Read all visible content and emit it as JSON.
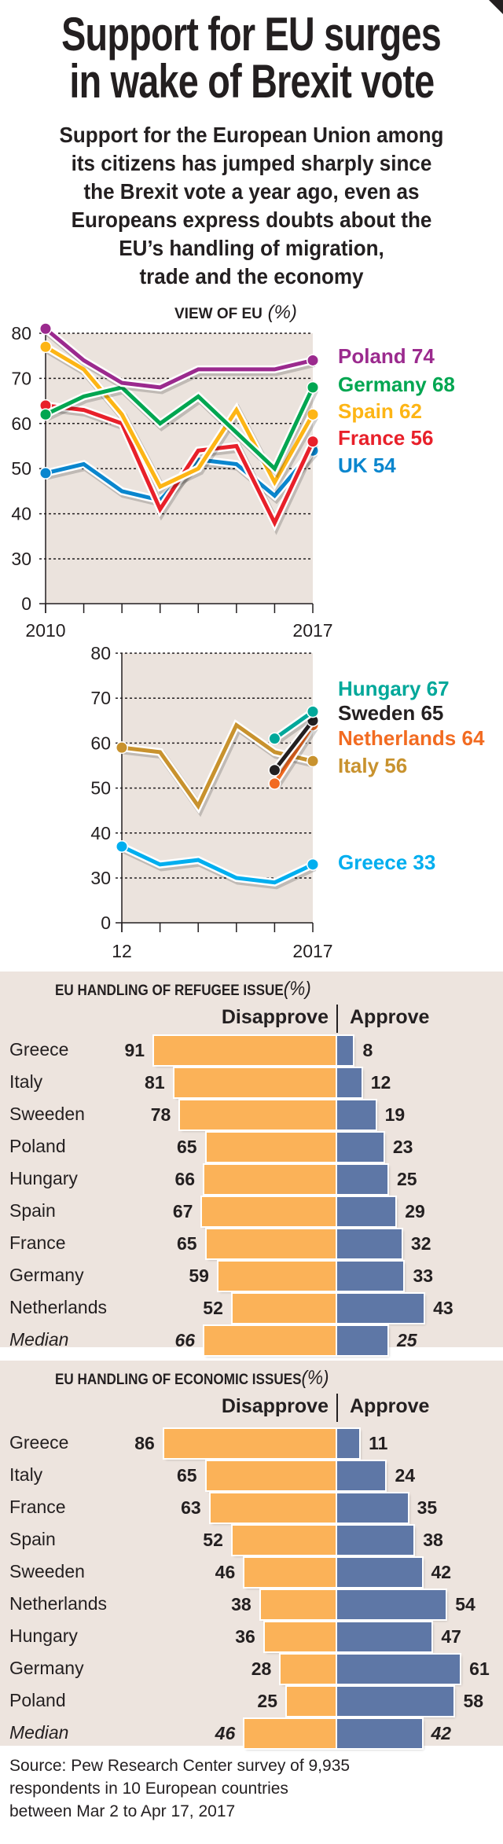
{
  "title": {
    "line1": "Support for EU surges",
    "line2": "in wake of Brexit vote"
  },
  "subtitle": [
    "Support for the European Union among",
    "its citizens has jumped sharply since",
    "the Brexit vote a year ago, even as",
    "Europeans express doubts about the",
    "EU’s handling of migration,",
    "trade and the economy"
  ],
  "colors": {
    "plot_bg": "#ebe3dd",
    "panel_bg": "#ede4de",
    "disapprove": "#fbb258",
    "approve": "#5e77a6"
  },
  "chart_data": [
    {
      "type": "line",
      "title": "View of EU",
      "title_unit": "(%)",
      "x": [
        2010,
        2011,
        2012,
        2013,
        2014,
        2015,
        2016,
        2017
      ],
      "x_tick_labels": [
        "2010",
        "2017"
      ],
      "y_ticks": [
        "0",
        "30",
        "40",
        "50",
        "60",
        "70",
        "80"
      ],
      "ylim": [
        0,
        80
      ],
      "y_axis_break": "0 to 30",
      "grid": true,
      "legend": "right, end-of-line labels",
      "series": [
        {
          "name": "Poland",
          "label": "Poland 74",
          "color": "#9b2a8e",
          "values": [
            81,
            74,
            69,
            68,
            72,
            72,
            72,
            74
          ]
        },
        {
          "name": "Germany",
          "label": "Germany 68",
          "color": "#00a651",
          "values": [
            62,
            66,
            68,
            60,
            66,
            58,
            50,
            68
          ]
        },
        {
          "name": "Spain",
          "label": "Spain 62",
          "color": "#fdb515",
          "values": [
            77,
            72,
            62,
            46,
            50,
            63,
            47,
            62
          ]
        },
        {
          "name": "France",
          "label": "France 56",
          "color": "#e8202a",
          "values": [
            64,
            63,
            60,
            41,
            54,
            55,
            38,
            56
          ]
        },
        {
          "name": "UK",
          "label": "UK 54",
          "color": "#0a86ce",
          "values": [
            49,
            51,
            45,
            43,
            52,
            51,
            44,
            54
          ]
        }
      ]
    },
    {
      "type": "line",
      "x": [
        2012,
        2013,
        2014,
        2015,
        2016,
        2017
      ],
      "x_tick_labels": [
        "12",
        "2017"
      ],
      "y_ticks": [
        "0",
        "30",
        "40",
        "50",
        "60",
        "70",
        "80"
      ],
      "ylim": [
        0,
        80
      ],
      "y_axis_break": "0 to 30",
      "grid": true,
      "legend": "right, end-of-line labels",
      "series": [
        {
          "name": "Hungary",
          "label": "Hungary 67",
          "color": "#00a89a",
          "values": [
            null,
            null,
            null,
            null,
            61,
            67
          ]
        },
        {
          "name": "Sweden",
          "label": "Sweden 65",
          "color": "#231f20",
          "values": [
            null,
            null,
            null,
            null,
            54,
            65
          ]
        },
        {
          "name": "Netherlands",
          "label": "Netherlands 64",
          "color": "#f26b21",
          "values": [
            null,
            null,
            null,
            null,
            51,
            64
          ]
        },
        {
          "name": "Italy",
          "label": "Italy 56",
          "color": "#c8922e",
          "values": [
            59,
            58,
            46,
            64,
            58,
            56
          ]
        },
        {
          "name": "Greece",
          "label": "Greece 33",
          "color": "#00aeef",
          "values": [
            37,
            33,
            34,
            30,
            27,
            33
          ]
        }
      ]
    },
    {
      "type": "bar",
      "title": "EU Handling of Refugee Issue",
      "title_unit": "(%)",
      "disapprove_label": "Disapprove",
      "approve_label": "Approve",
      "categories": [
        "Greece",
        "Italy",
        "Sweeden",
        "Poland",
        "Hungary",
        "Spain",
        "France",
        "Germany",
        "Netherlands",
        "Median"
      ],
      "series": [
        {
          "name": "Disapprove",
          "values": [
            91,
            81,
            78,
            65,
            66,
            67,
            65,
            59,
            52,
            66
          ]
        },
        {
          "name": "Approve",
          "values": [
            8,
            12,
            19,
            23,
            25,
            29,
            32,
            33,
            43,
            25
          ]
        }
      ]
    },
    {
      "type": "bar",
      "title": "EU Handling of Economic Issues",
      "title_unit": "(%)",
      "disapprove_label": "Disapprove",
      "approve_label": "Approve",
      "categories": [
        "Greece",
        "Italy",
        "France",
        "Spain",
        "Sweeden",
        "Netherlands",
        "Hungary",
        "Germany",
        "Poland",
        "Median"
      ],
      "series": [
        {
          "name": "Disapprove",
          "values": [
            86,
            65,
            63,
            52,
            46,
            38,
            36,
            28,
            25,
            46
          ]
        },
        {
          "name": "Approve",
          "values": [
            11,
            24,
            35,
            38,
            42,
            54,
            47,
            61,
            58,
            42
          ]
        }
      ]
    }
  ],
  "source": [
    "Source: Pew Research Center survey of 9,935",
    "respondents in 10 European countries",
    "between Mar 2 to Apr 17, 2017"
  ]
}
